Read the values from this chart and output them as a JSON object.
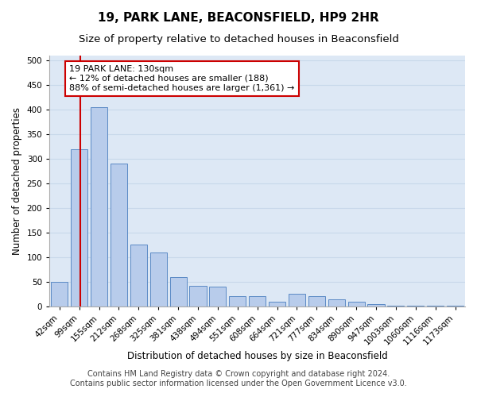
{
  "title": "19, PARK LANE, BEACONSFIELD, HP9 2HR",
  "subtitle": "Size of property relative to detached houses in Beaconsfield",
  "xlabel": "Distribution of detached houses by size in Beaconsfield",
  "ylabel": "Number of detached properties",
  "footer1": "Contains HM Land Registry data © Crown copyright and database right 2024.",
  "footer2": "Contains public sector information licensed under the Open Government Licence v3.0.",
  "categories": [
    "42sqm",
    "99sqm",
    "155sqm",
    "212sqm",
    "268sqm",
    "325sqm",
    "381sqm",
    "438sqm",
    "494sqm",
    "551sqm",
    "608sqm",
    "664sqm",
    "721sqm",
    "777sqm",
    "834sqm",
    "890sqm",
    "947sqm",
    "1003sqm",
    "1060sqm",
    "1116sqm",
    "1173sqm"
  ],
  "values": [
    50,
    320,
    405,
    290,
    125,
    110,
    60,
    42,
    40,
    20,
    20,
    10,
    25,
    20,
    15,
    10,
    5,
    2,
    2,
    1,
    1
  ],
  "bar_color": "#b8cceb",
  "bar_edge_color": "#5b8ac5",
  "annotation_title": "19 PARK LANE: 130sqm",
  "annotation_line1": "← 12% of detached houses are smaller (188)",
  "annotation_line2": "88% of semi-detached houses are larger (1,361) →",
  "annotation_box_facecolor": "#ffffff",
  "annotation_box_edgecolor": "#cc0000",
  "line_color": "#cc0000",
  "ylim": [
    0,
    510
  ],
  "yticks": [
    0,
    50,
    100,
    150,
    200,
    250,
    300,
    350,
    400,
    450,
    500
  ],
  "grid_color": "#c8d8ea",
  "background_color": "#dde8f5",
  "title_fontsize": 11,
  "subtitle_fontsize": 9.5,
  "ylabel_fontsize": 8.5,
  "xlabel_fontsize": 8.5,
  "tick_fontsize": 7.5,
  "annotation_fontsize": 8,
  "footer_fontsize": 7
}
